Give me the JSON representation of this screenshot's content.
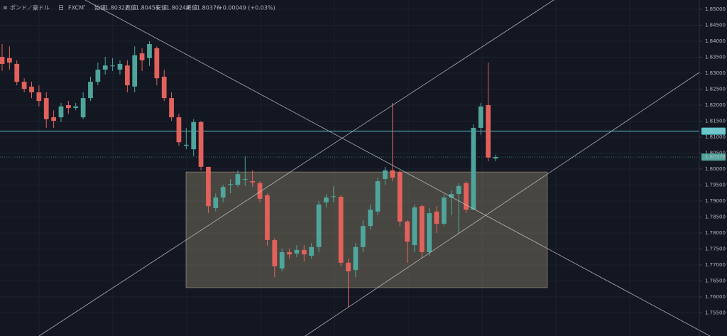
{
  "chart_data": {
    "type": "candlestick",
    "symbol": "ポンド／豪ドル",
    "interval": "日",
    "source": "FXCM",
    "ohlc_legend": [
      {
        "label": "始値",
        "value": "1.80327"
      },
      {
        "label": "高値",
        "value": "1.80454"
      },
      {
        "label": "安値",
        "value": "1.80244"
      },
      {
        "label": "終値",
        "value": "1.80376"
      }
    ],
    "change": "+0.00049 (+0.03%)",
    "up_color": "#4fa59b",
    "down_color": "#e2625b",
    "grid": true,
    "ylim": [
      1.74778,
      1.85289
    ],
    "yticks": [
      {
        "value": 1.85,
        "label": "1.85000"
      },
      {
        "value": 1.845,
        "label": "1.84500"
      },
      {
        "value": 1.84,
        "label": "1.84000"
      },
      {
        "value": 1.835,
        "label": "1.83500"
      },
      {
        "value": 1.83,
        "label": "1.83000"
      },
      {
        "value": 1.825,
        "label": "1.82500"
      },
      {
        "value": 1.82,
        "label": "1.82000"
      },
      {
        "value": 1.815,
        "label": "1.81500"
      },
      {
        "value": 1.81,
        "label": "1.81000"
      },
      {
        "value": 1.805,
        "label": "1.80500"
      },
      {
        "value": 1.8,
        "label": "1.80000"
      },
      {
        "value": 1.795,
        "label": "1.79500"
      },
      {
        "value": 1.79,
        "label": "1.79000"
      },
      {
        "value": 1.785,
        "label": "1.78500"
      },
      {
        "value": 1.78,
        "label": "1.78000"
      },
      {
        "value": 1.775,
        "label": "1.77500"
      },
      {
        "value": 1.77,
        "label": "1.77000"
      },
      {
        "value": 1.765,
        "label": "1.76500"
      },
      {
        "value": 1.76,
        "label": "1.76000"
      },
      {
        "value": 1.755,
        "label": "1.75500"
      }
    ],
    "horizontal_line": {
      "value": 1.81186,
      "label": "1.81186",
      "color": "#5fc9cf"
    },
    "last_price": {
      "value": 1.80376,
      "label": "1.80376",
      "color": "#4fa59b"
    },
    "zone": {
      "top": 1.7991,
      "bottom": 1.7629
    },
    "open": [
      1.8351,
      1.8347,
      1.8329,
      1.8273,
      1.8258,
      1.824,
      1.8222,
      1.8162,
      1.8162,
      1.82,
      1.8191,
      1.8162,
      1.8222,
      1.8273,
      1.8311,
      1.8322,
      1.8311,
      1.8324,
      1.8258,
      1.8362,
      1.8347,
      1.8378,
      1.8289,
      1.8222,
      1.8162,
      1.8073,
      1.8062,
      1.8147,
      1.8007,
      1.7878,
      1.7911,
      1.7951,
      1.7951,
      1.7967,
      1.7962,
      1.7956,
      1.7918,
      1.7778,
      1.7689,
      1.774,
      1.7736,
      1.7747,
      1.7729,
      1.7756,
      1.7896,
      1.7913,
      1.7913,
      1.7707,
      1.7684,
      1.7756,
      1.7822,
      1.7867,
      1.7969,
      1.7996,
      1.7991,
      1.7836,
      1.7762,
      1.7884,
      1.774,
      1.7867,
      1.7829,
      1.7911,
      1.7922,
      1.7956,
      1.7873,
      1.8129,
      1.82,
      1.8033
    ],
    "high": [
      1.8391,
      1.8384,
      1.834,
      1.8284,
      1.8273,
      1.8262,
      1.824,
      1.8184,
      1.8207,
      1.8213,
      1.8207,
      1.824,
      1.8289,
      1.8333,
      1.8351,
      1.8347,
      1.834,
      1.834,
      1.8384,
      1.8378,
      1.84,
      1.8384,
      1.8311,
      1.824,
      1.8173,
      1.8129,
      1.8156,
      1.8151,
      1.8007,
      1.7924,
      1.7951,
      1.7969,
      1.7996,
      1.804,
      1.7996,
      1.7962,
      1.7924,
      1.7784,
      1.7751,
      1.7751,
      1.7762,
      1.7762,
      1.7769,
      1.79,
      1.7922,
      1.7947,
      1.7918,
      1.772,
      1.7769,
      1.784,
      1.7889,
      1.7973,
      1.8007,
      1.8207,
      1.7996,
      1.784,
      1.7889,
      1.7889,
      1.7878,
      1.7884,
      1.7922,
      1.7933,
      1.7956,
      1.7962,
      1.814,
      1.8207,
      1.8333,
      1.80454
    ],
    "low": [
      1.8307,
      1.8311,
      1.8262,
      1.824,
      1.8222,
      1.8196,
      1.8129,
      1.8129,
      1.8147,
      1.8173,
      1.8184,
      1.8156,
      1.8213,
      1.8262,
      1.8296,
      1.8307,
      1.8296,
      1.824,
      1.824,
      1.8307,
      1.8322,
      1.8262,
      1.8213,
      1.8151,
      1.8073,
      1.8062,
      1.804,
      1.7996,
      1.7862,
      1.7867,
      1.7896,
      1.7924,
      1.7944,
      1.7947,
      1.7944,
      1.7896,
      1.776,
      1.7662,
      1.768,
      1.772,
      1.7724,
      1.7711,
      1.772,
      1.774,
      1.788,
      1.7896,
      1.7696,
      1.7569,
      1.7662,
      1.774,
      1.7811,
      1.7856,
      1.7951,
      1.7962,
      1.7822,
      1.7707,
      1.774,
      1.772,
      1.7729,
      1.78,
      1.7822,
      1.7856,
      1.78,
      1.7862,
      1.7873,
      1.8107,
      1.8024,
      1.80244
    ],
    "close": [
      1.8329,
      1.8333,
      1.8273,
      1.8251,
      1.824,
      1.8213,
      1.8156,
      1.8151,
      1.8196,
      1.8191,
      1.8196,
      1.8222,
      1.8273,
      1.8311,
      1.8324,
      1.8324,
      1.8329,
      1.8262,
      1.8356,
      1.834,
      1.8391,
      1.8284,
      1.8222,
      1.8162,
      1.8084,
      1.8076,
      1.8147,
      1.8007,
      1.7884,
      1.7911,
      1.7944,
      1.7953,
      1.7984,
      1.7969,
      1.7958,
      1.7907,
      1.7778,
      1.7696,
      1.774,
      1.7733,
      1.7747,
      1.7733,
      1.7756,
      1.7889,
      1.7911,
      1.7915,
      1.7707,
      1.768,
      1.7756,
      1.7822,
      1.7873,
      1.7962,
      1.7996,
      1.7973,
      1.7836,
      1.7773,
      1.788,
      1.774,
      1.7862,
      1.7829,
      1.7911,
      1.7922,
      1.7947,
      1.7873,
      1.8129,
      1.8196,
      1.8036,
      1.80376
    ]
  }
}
